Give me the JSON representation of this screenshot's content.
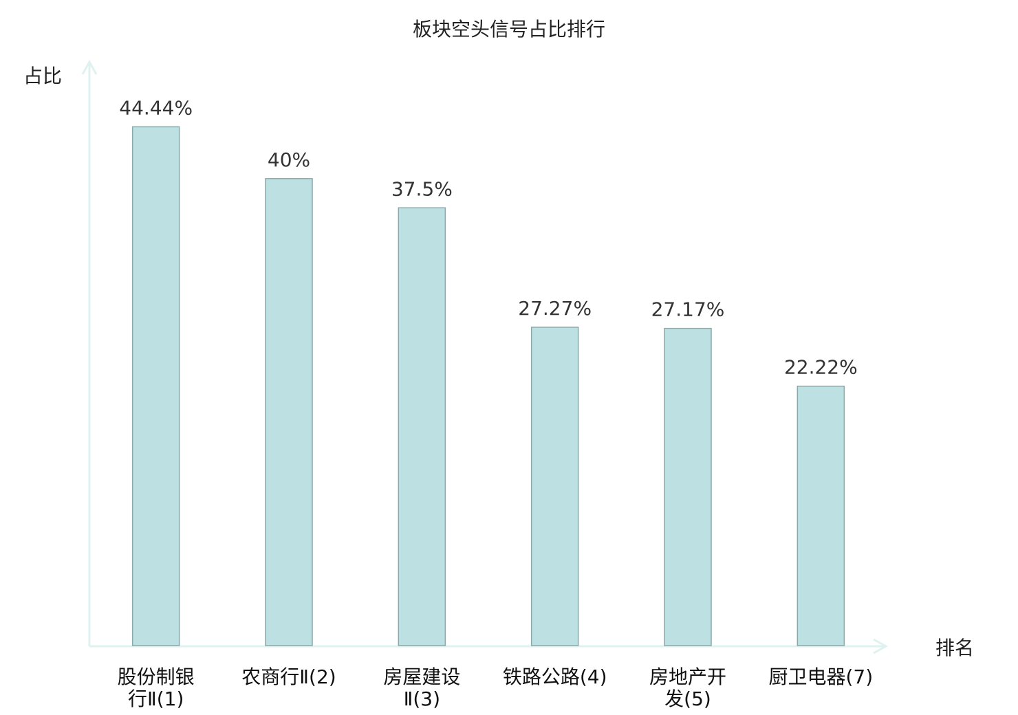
{
  "chart_data": {
    "type": "bar",
    "title": "板块空头信号占比排行",
    "xlabel": "排名",
    "ylabel": "占比",
    "ylim": [
      0,
      50
    ],
    "grid": false,
    "categories": [
      [
        "股份制银",
        "行Ⅱ(1)"
      ],
      [
        "农商行Ⅱ(2)"
      ],
      [
        "房屋建设",
        "Ⅱ(3)"
      ],
      [
        "铁路公路(4)"
      ],
      [
        "房地产开",
        "发(5)"
      ],
      [
        "厨卫电器(7)"
      ]
    ],
    "category_highlight": [
      false,
      false,
      false,
      false,
      false,
      true
    ],
    "values": [
      44.44,
      40,
      37.5,
      27.27,
      27.17,
      22.22
    ],
    "value_labels": [
      "44.44%",
      "40%",
      "37.5%",
      "27.27%",
      "27.17%",
      "22.22%"
    ],
    "colors": {
      "bar_fill": "#bde0e3",
      "bar_stroke": "#8aa9aa",
      "axis": "#dff2f0",
      "highlight_text": "#e81010",
      "normal_text": "#111111"
    }
  }
}
